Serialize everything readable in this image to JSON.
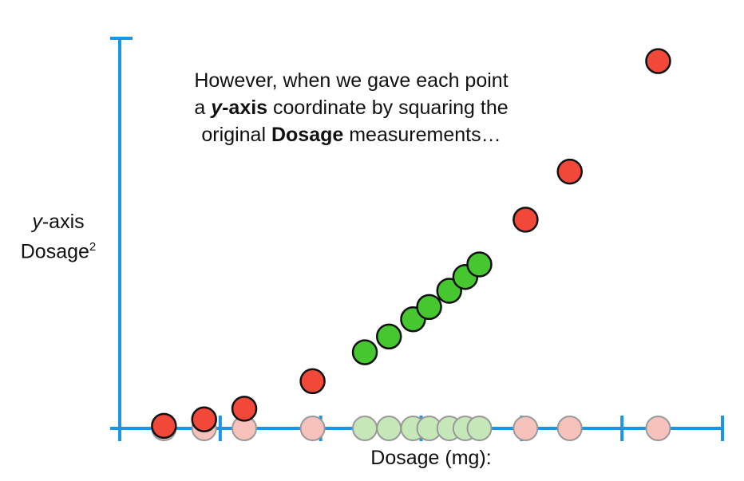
{
  "caption": {
    "line1": "However, when we gave each point",
    "line2_pre": "a ",
    "line2_bold_italic": "y",
    "line2_bold": "-axis",
    "line2_post": " coordinate by squaring the",
    "line3_pre": "original ",
    "line3_bold": "Dosage",
    "line3_post": " measurements…"
  },
  "y_label": {
    "italic": "y",
    "rest": "-axis",
    "line2": "Dosage",
    "sup": "2"
  },
  "x_label": "Dosage (mg):",
  "colors": {
    "axis": "#1c95e6",
    "red": "#f2483a",
    "green": "#47c72f",
    "red_faded": "#f7c2bc",
    "green_faded": "#c6e8b9",
    "outline": "#111111",
    "faded_outline": "#999999"
  },
  "chart_data": {
    "type": "scatter",
    "x_ticks": [
      0,
      5,
      10,
      15,
      20,
      25,
      30
    ],
    "xlim": [
      0,
      30
    ],
    "ylim": [
      0,
      800
    ],
    "series": [
      {
        "color_key": "red",
        "points": [
          [
            2.2,
            4.8
          ],
          [
            4.2,
            17.6
          ],
          [
            6.2,
            38.4
          ],
          [
            9.6,
            92.2
          ],
          [
            20.2,
            408
          ],
          [
            22.4,
            502
          ],
          [
            26.8,
            718
          ]
        ]
      },
      {
        "color_key": "green",
        "points": [
          [
            12.2,
            148.8
          ],
          [
            13.4,
            179.6
          ],
          [
            14.6,
            213.2
          ],
          [
            15.4,
            237.2
          ],
          [
            16.4,
            269
          ],
          [
            17.2,
            296
          ],
          [
            17.9,
            320.4
          ]
        ]
      }
    ]
  }
}
